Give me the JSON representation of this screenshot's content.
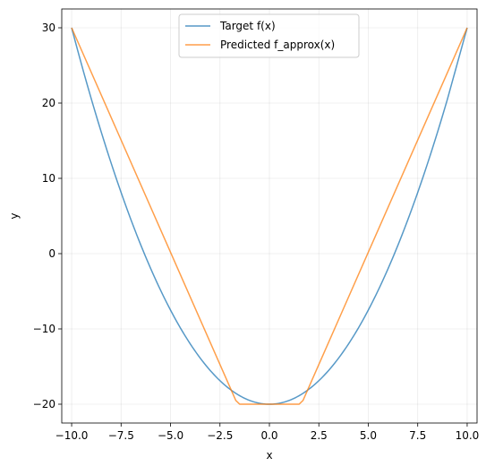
{
  "chart_data": {
    "type": "line",
    "title": "",
    "xlabel": "x",
    "ylabel": "y",
    "xlim": [
      -10.5,
      10.5
    ],
    "ylim": [
      -22.5,
      32.5
    ],
    "x_ticks": [
      -10.0,
      -7.5,
      -5.0,
      -2.5,
      0.0,
      2.5,
      5.0,
      7.5,
      10.0
    ],
    "x_tick_labels": [
      "−10.0",
      "−7.5",
      "−5.0",
      "−2.5",
      "0.0",
      "2.5",
      "5.0",
      "7.5",
      "10.0"
    ],
    "y_ticks": [
      -20,
      -10,
      0,
      10,
      20,
      30
    ],
    "y_tick_labels": [
      "−20",
      "−10",
      "0",
      "10",
      "20",
      "30"
    ],
    "grid": true,
    "legend_position": "upper-center",
    "series": [
      {
        "name": "Target f(x)",
        "color": "#1f77b4",
        "opacity": 0.75,
        "x": [
          -10,
          -9,
          -8,
          -7,
          -6,
          -5,
          -4,
          -3,
          -2,
          -1,
          0,
          1,
          2,
          3,
          4,
          5,
          6,
          7,
          8,
          9,
          10
        ],
        "y": [
          30,
          20.5,
          12,
          4.5,
          -2,
          -7.5,
          -12,
          -15.5,
          -18,
          -19.5,
          -20,
          -19.5,
          -18,
          -15.5,
          -12,
          -7.5,
          -2,
          4.5,
          12,
          20.5,
          30
        ]
      },
      {
        "name": "Predicted f_approx(x)",
        "color": "#ff7f0e",
        "opacity": 0.75,
        "x": [
          -10,
          -1.7,
          -1.5,
          1.5,
          1.7,
          10
        ],
        "y": [
          30,
          -19.5,
          -20,
          -20,
          -19.5,
          30
        ]
      }
    ]
  }
}
